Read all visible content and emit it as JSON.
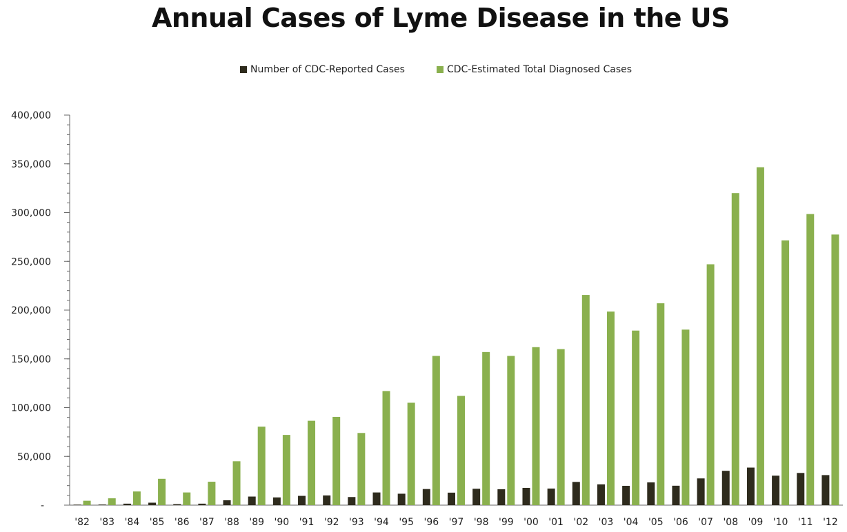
{
  "chart_data": {
    "type": "bar",
    "title": "Annual Cases of Lyme Disease in the US",
    "xlabel": "",
    "ylabel": "",
    "ylim": [
      0,
      400000
    ],
    "yticks": [
      0,
      50000,
      100000,
      150000,
      200000,
      250000,
      300000,
      350000,
      400000
    ],
    "ytick_labels": [
      "-",
      "50,000",
      "100,000",
      "150,000",
      "200,000",
      "250,000",
      "300,000",
      "350,000",
      "400,000"
    ],
    "legend_position": "top",
    "grid": false,
    "categories": [
      "'82",
      "'83",
      "'84",
      "'85",
      "'86",
      "'87",
      "'88",
      "'89",
      "'90",
      "'91",
      "'92",
      "'93",
      "'94",
      "'95",
      "'96",
      "'97",
      "'98",
      "'99",
      "'00",
      "'01",
      "'02",
      "'03",
      "'04",
      "'05",
      "'06",
      "'07",
      "'08",
      "'09",
      "'10",
      "'11",
      "'12"
    ],
    "series": [
      {
        "name": "Number of CDC-Reported Cases",
        "color": "#2e2b1d",
        "values": [
          500,
          600,
          1500,
          2500,
          1000,
          1500,
          5000,
          8800,
          7900,
          9500,
          9900,
          8300,
          13000,
          11700,
          16500,
          12800,
          16800,
          16300,
          17700,
          17000,
          23800,
          21300,
          19800,
          23300,
          19900,
          27400,
          35200,
          38500,
          30200,
          33000,
          30800
        ]
      },
      {
        "name": "CDC-Estimated Total Diagnosed Cases",
        "color": "#8ab04e",
        "values": [
          4500,
          7000,
          14000,
          27000,
          13000,
          24000,
          45000,
          80500,
          72000,
          86500,
          90500,
          74000,
          117000,
          105000,
          153000,
          112000,
          157000,
          153000,
          162000,
          160000,
          215500,
          198500,
          179000,
          207000,
          180000,
          247000,
          320000,
          346500,
          271500,
          298500,
          277500
        ]
      }
    ]
  }
}
